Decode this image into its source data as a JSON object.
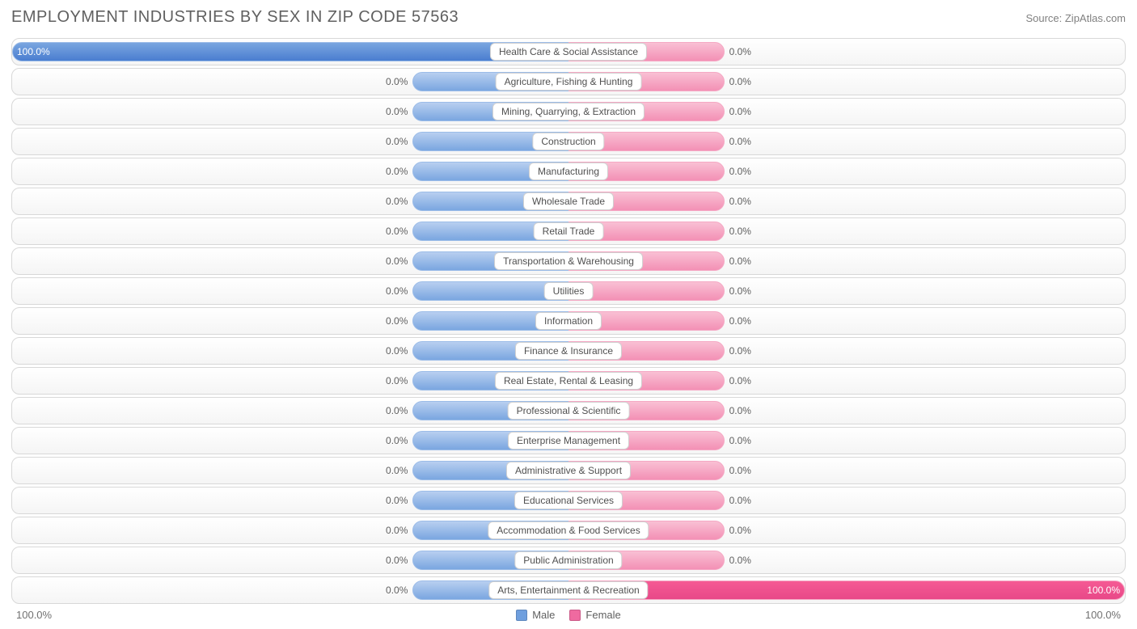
{
  "title": "EMPLOYMENT INDUSTRIES BY SEX IN ZIP CODE 57563",
  "source": "Source: ZipAtlas.com",
  "axis": {
    "left": "100.0%",
    "right": "100.0%"
  },
  "legend": {
    "male": {
      "label": "Male",
      "color": "#6f9fde"
    },
    "female": {
      "label": "Female",
      "color": "#ef6aa0"
    }
  },
  "colors": {
    "male_bar": "#8fb4e8",
    "male_bar_full": "#5a8ad8",
    "female_bar": "#f6a8c5",
    "female_bar_solid": "#ee5a94",
    "row_border": "#d8d8d8",
    "text": "#606060",
    "label_bg": "#ffffff",
    "label_border": "#d0d0d0"
  },
  "chart": {
    "type": "diverging-bar",
    "default_bar_pct": 28,
    "font_size_labels": 12,
    "font_size_title": 20,
    "rows": [
      {
        "label": "Health Care & Social Assistance",
        "male_pct": 100.0,
        "male_text": "100.0%",
        "female_pct": 0.0,
        "female_text": "0.0%",
        "male_full": true
      },
      {
        "label": "Agriculture, Fishing & Hunting",
        "male_pct": 0.0,
        "male_text": "0.0%",
        "female_pct": 0.0,
        "female_text": "0.0%"
      },
      {
        "label": "Mining, Quarrying, & Extraction",
        "male_pct": 0.0,
        "male_text": "0.0%",
        "female_pct": 0.0,
        "female_text": "0.0%"
      },
      {
        "label": "Construction",
        "male_pct": 0.0,
        "male_text": "0.0%",
        "female_pct": 0.0,
        "female_text": "0.0%"
      },
      {
        "label": "Manufacturing",
        "male_pct": 0.0,
        "male_text": "0.0%",
        "female_pct": 0.0,
        "female_text": "0.0%"
      },
      {
        "label": "Wholesale Trade",
        "male_pct": 0.0,
        "male_text": "0.0%",
        "female_pct": 0.0,
        "female_text": "0.0%"
      },
      {
        "label": "Retail Trade",
        "male_pct": 0.0,
        "male_text": "0.0%",
        "female_pct": 0.0,
        "female_text": "0.0%"
      },
      {
        "label": "Transportation & Warehousing",
        "male_pct": 0.0,
        "male_text": "0.0%",
        "female_pct": 0.0,
        "female_text": "0.0%"
      },
      {
        "label": "Utilities",
        "male_pct": 0.0,
        "male_text": "0.0%",
        "female_pct": 0.0,
        "female_text": "0.0%"
      },
      {
        "label": "Information",
        "male_pct": 0.0,
        "male_text": "0.0%",
        "female_pct": 0.0,
        "female_text": "0.0%"
      },
      {
        "label": "Finance & Insurance",
        "male_pct": 0.0,
        "male_text": "0.0%",
        "female_pct": 0.0,
        "female_text": "0.0%"
      },
      {
        "label": "Real Estate, Rental & Leasing",
        "male_pct": 0.0,
        "male_text": "0.0%",
        "female_pct": 0.0,
        "female_text": "0.0%"
      },
      {
        "label": "Professional & Scientific",
        "male_pct": 0.0,
        "male_text": "0.0%",
        "female_pct": 0.0,
        "female_text": "0.0%"
      },
      {
        "label": "Enterprise Management",
        "male_pct": 0.0,
        "male_text": "0.0%",
        "female_pct": 0.0,
        "female_text": "0.0%"
      },
      {
        "label": "Administrative & Support",
        "male_pct": 0.0,
        "male_text": "0.0%",
        "female_pct": 0.0,
        "female_text": "0.0%"
      },
      {
        "label": "Educational Services",
        "male_pct": 0.0,
        "male_text": "0.0%",
        "female_pct": 0.0,
        "female_text": "0.0%"
      },
      {
        "label": "Accommodation & Food Services",
        "male_pct": 0.0,
        "male_text": "0.0%",
        "female_pct": 0.0,
        "female_text": "0.0%"
      },
      {
        "label": "Public Administration",
        "male_pct": 0.0,
        "male_text": "0.0%",
        "female_pct": 0.0,
        "female_text": "0.0%"
      },
      {
        "label": "Arts, Entertainment & Recreation",
        "male_pct": 0.0,
        "male_text": "0.0%",
        "female_pct": 100.0,
        "female_text": "100.0%",
        "female_solid": true
      }
    ]
  }
}
